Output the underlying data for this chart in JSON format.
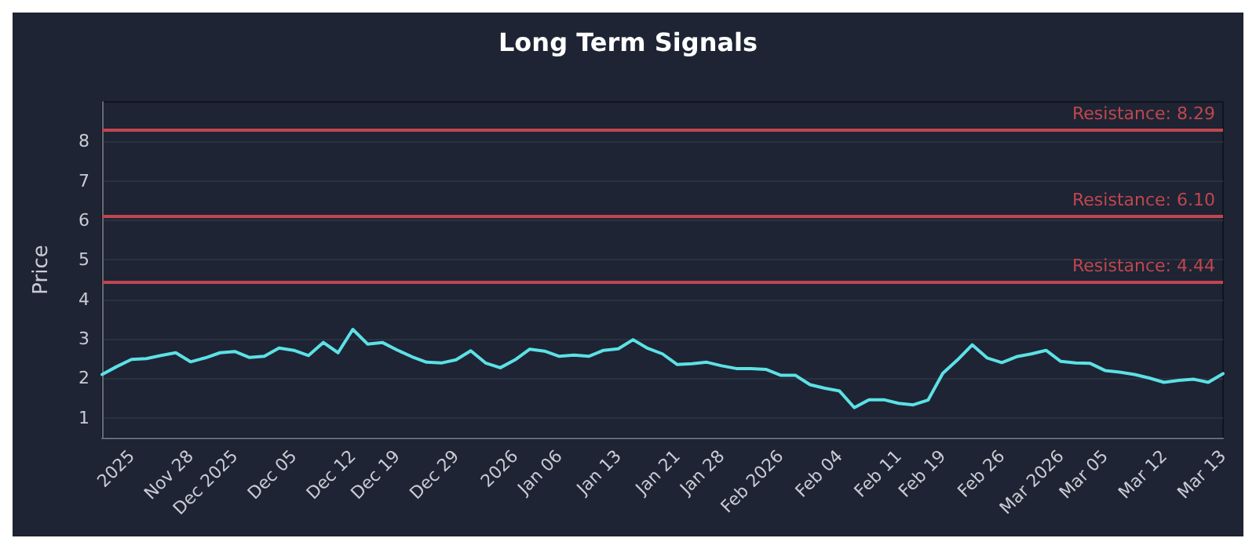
{
  "chart_data": {
    "type": "line",
    "title": "Long Term Signals",
    "ylabel": "Price",
    "categories": [
      null,
      null,
      "2025",
      null,
      null,
      null,
      "Nov 28",
      null,
      null,
      "Dec 2025",
      null,
      null,
      null,
      "Dec 05",
      null,
      null,
      null,
      "Dec 12",
      null,
      null,
      "Dec 19",
      null,
      null,
      null,
      "Dec 29",
      null,
      null,
      null,
      "2026",
      null,
      null,
      "Jan 06",
      null,
      null,
      null,
      "Jan 13",
      null,
      null,
      null,
      "Jan 21",
      null,
      null,
      "Jan 28",
      null,
      null,
      null,
      "Feb 2026",
      null,
      null,
      null,
      "Feb 04",
      null,
      null,
      null,
      "Feb 11",
      null,
      null,
      "Feb 19",
      null,
      null,
      null,
      "Feb 26",
      null,
      null,
      null,
      "Mar 2026",
      null,
      null,
      "Mar 05",
      null,
      null,
      null,
      "Mar 12",
      null,
      null,
      null,
      "Mar 13"
    ],
    "series": [
      {
        "color": "#5ce1e6",
        "values": [
          2.1,
          2.3,
          2.48,
          2.5,
          2.58,
          2.65,
          2.42,
          2.52,
          2.65,
          2.68,
          2.53,
          2.56,
          2.77,
          2.71,
          2.58,
          2.91,
          2.65,
          3.24,
          2.87,
          2.91,
          2.72,
          2.55,
          2.41,
          2.39,
          2.47,
          2.7,
          2.39,
          2.27,
          2.47,
          2.74,
          2.69,
          2.56,
          2.59,
          2.56,
          2.71,
          2.75,
          2.98,
          2.76,
          2.62,
          2.35,
          2.37,
          2.41,
          2.32,
          2.25,
          2.25,
          2.23,
          2.08,
          2.08,
          1.84,
          1.75,
          1.68,
          1.26,
          1.46,
          1.46,
          1.37,
          1.33,
          1.45,
          2.13,
          2.47,
          2.85,
          2.52,
          2.4,
          2.55,
          2.62,
          2.71,
          2.43,
          2.39,
          2.38,
          2.2,
          2.16,
          2.1,
          2.01,
          1.9,
          1.95,
          1.98,
          1.9,
          2.12
        ]
      }
    ],
    "ylim": [
      0.5,
      9
    ],
    "yticks": [
      1,
      2,
      3,
      4,
      5,
      6,
      7,
      8
    ],
    "grid": "y",
    "marker": "none",
    "line_style": "solid",
    "ref_lines": [
      {
        "axis": "y",
        "value": 8.29,
        "label": "Resistance: 8.29",
        "color": "#c0464f"
      },
      {
        "axis": "y",
        "value": 6.1,
        "label": "Resistance: 6.10",
        "color": "#c0464f"
      },
      {
        "axis": "y",
        "value": 4.44,
        "label": "Resistance: 4.44",
        "color": "#c0464f"
      }
    ]
  }
}
